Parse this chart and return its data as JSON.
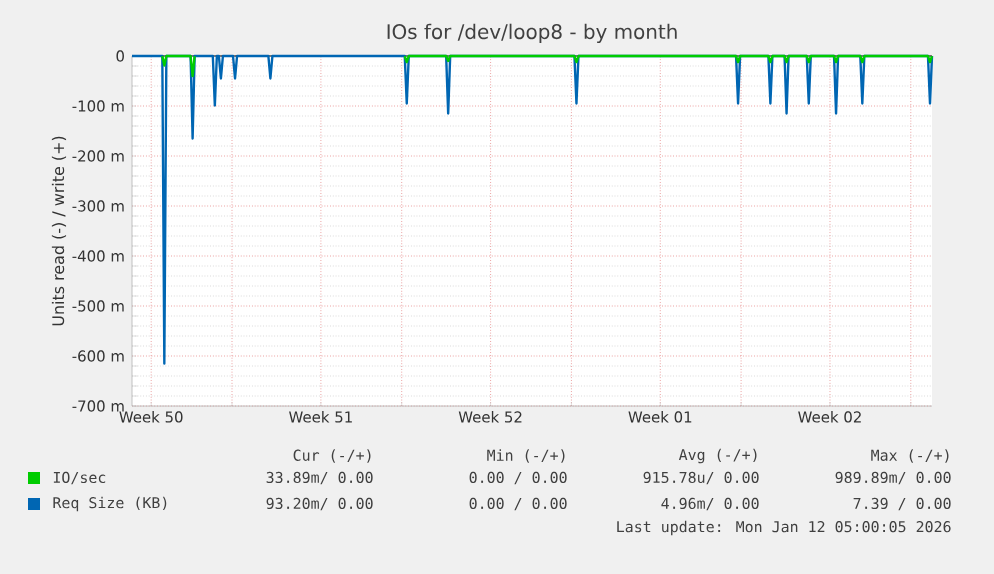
{
  "chart_data": {
    "type": "line",
    "title": "IOs for /dev/loop8 - by month",
    "ylabel": "Units read (-) / write (+)",
    "x": [
      "2025-12-10T05:00",
      "2025-12-11T11:00",
      "2025-12-11T13:00",
      "2025-12-11T15:00",
      "2025-12-12T15:00",
      "2025-12-12T17:00",
      "2025-12-12T19:00",
      "2025-12-13T13:00",
      "2025-12-13T15:00",
      "2025-12-13T17:00",
      "2025-12-13T19:00",
      "2025-12-13T21:00",
      "2025-12-13T23:00",
      "2025-12-14T09:00",
      "2025-12-14T11:00",
      "2025-12-14T13:00",
      "2025-12-15T20:00",
      "2025-12-15T22:00",
      "2025-12-16T00:00",
      "2025-12-21T11:00",
      "2025-12-21T13:00",
      "2025-12-21T15:00",
      "2025-12-23T04:00",
      "2025-12-23T06:00",
      "2025-12-23T08:00",
      "2025-12-28T11:00",
      "2025-12-28T13:00",
      "2025-12-28T15:00",
      "2026-01-04T03:00",
      "2026-01-04T05:00",
      "2026-01-04T07:00",
      "2026-01-05T11:00",
      "2026-01-05T13:00",
      "2026-01-05T15:00",
      "2026-01-06T03:00",
      "2026-01-06T05:00",
      "2026-01-06T07:00",
      "2026-01-07T01:00",
      "2026-01-07T03:00",
      "2026-01-07T05:00",
      "2026-01-08T04:00",
      "2026-01-08T06:00",
      "2026-01-08T08:00",
      "2026-01-09T06:00",
      "2026-01-09T08:00",
      "2026-01-09T10:00",
      "2026-01-12T01:00",
      "2026-01-12T03:00",
      "2026-01-12T05:00"
    ],
    "series": [
      {
        "name": "Req Size (KB)",
        "color": "#0066b3",
        "values": [
          0,
          0,
          -615,
          0,
          0,
          -165,
          0,
          0,
          -99,
          0,
          0,
          -45,
          0,
          0,
          -45,
          0,
          0,
          -45,
          0,
          0,
          -95,
          0,
          0,
          -115,
          0,
          0,
          -95,
          0,
          0,
          -95,
          0,
          0,
          -95,
          0,
          0,
          -115,
          0,
          0,
          -95,
          0,
          0,
          -115,
          0,
          0,
          -95,
          0,
          0,
          -95,
          0
        ]
      },
      {
        "name": "IO/sec",
        "color": "#00cc00",
        "values": [
          null,
          0,
          -19,
          0,
          0,
          -40,
          0,
          null,
          null,
          null,
          null,
          null,
          null,
          null,
          null,
          null,
          null,
          null,
          null,
          0,
          -12,
          0,
          0,
          -10,
          0,
          0,
          -12,
          0,
          0,
          -12,
          0,
          0,
          -12,
          0,
          0,
          -12,
          0,
          0,
          -12,
          0,
          0,
          -12,
          0,
          0,
          -12,
          0,
          0,
          -12,
          0
        ]
      }
    ],
    "xlim": [
      "2025-12-10T05:00",
      "2026-01-12T05:00"
    ],
    "xticks": [
      {
        "value": "2025-12-11",
        "label": "Week 50"
      },
      {
        "value": "2025-12-18",
        "label": "Week 51"
      },
      {
        "value": "2025-12-25",
        "label": "Week 52"
      },
      {
        "value": "2026-01-01",
        "label": "Week 01"
      },
      {
        "value": "2026-01-08",
        "label": "Week 02"
      },
      {
        "value": "2025-12-14T08:00",
        "label": null
      },
      {
        "value": "2025-12-21T08:00",
        "label": null
      },
      {
        "value": "2025-12-28T08:00",
        "label": null
      },
      {
        "value": "2026-01-04T08:00",
        "label": null
      },
      {
        "value": "2026-01-11T08:00",
        "label": null
      }
    ],
    "ylim": [
      -700,
      0
    ],
    "yticks": [
      0,
      {
        "value": -100,
        "label": "-100 m"
      },
      {
        "value": -200,
        "label": "-200 m"
      },
      {
        "value": -300,
        "label": "-300 m"
      },
      {
        "value": -400,
        "label": "-400 m"
      },
      {
        "value": -500,
        "label": "-500 m"
      },
      {
        "value": -600,
        "label": "-600 m"
      },
      {
        "value": -700,
        "label": "-700 m"
      }
    ],
    "grid": true,
    "legend": "bottom",
    "annotations": [
      "Cur (-/+)",
      "Min (-/+)",
      "Avg (-/+)",
      "Max (-/+)",
      "33.89m/ 0.00",
      "0.00 / 0.00",
      "915.78u/ 0.00",
      "989.89m/ 0.00",
      "93.20m/ 0.00",
      "0.00 / 0.00",
      "4.96m/ 0.00",
      "7.39 / 0.00",
      "Last update: Mon Jan 12 05:00:05 2026"
    ]
  }
}
